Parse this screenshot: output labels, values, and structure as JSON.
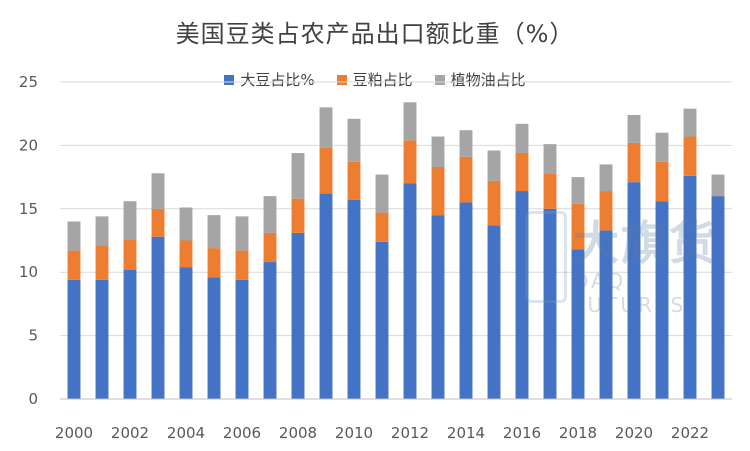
{
  "chart_data": {
    "type": "bar",
    "stacked": true,
    "title": "美国豆类占农产品出口额比重（%）",
    "categories": [
      "2000",
      "2001",
      "2002",
      "2003",
      "2004",
      "2005",
      "2006",
      "2007",
      "2008",
      "2009",
      "2010",
      "2011",
      "2012",
      "2013",
      "2014",
      "2015",
      "2016",
      "2017",
      "2018",
      "2019",
      "2020",
      "2021",
      "2022",
      "2023"
    ],
    "x_tick_labels": [
      "2000",
      "2002",
      "2004",
      "2006",
      "2008",
      "2010",
      "2012",
      "2014",
      "2016",
      "2018",
      "2020",
      "2022"
    ],
    "series": [
      {
        "name": "大豆占比%",
        "color": "#4472C4",
        "values": [
          9.4,
          9.4,
          10.2,
          12.8,
          10.4,
          9.6,
          9.4,
          10.8,
          13.1,
          16.2,
          15.7,
          12.4,
          17.0,
          14.5,
          15.5,
          13.7,
          16.4,
          15.0,
          11.8,
          13.3,
          17.1,
          15.6,
          17.6,
          16.0
        ]
      },
      {
        "name": "豆粕占比",
        "color": "#ED7D31",
        "values": [
          2.3,
          2.7,
          2.4,
          2.2,
          2.1,
          2.3,
          2.3,
          2.3,
          2.7,
          3.6,
          3.0,
          2.3,
          3.4,
          3.8,
          3.6,
          3.5,
          3.0,
          2.8,
          3.6,
          3.1,
          3.1,
          3.1,
          3.1,
          0.0
        ]
      },
      {
        "name": "植物油占比",
        "color": "#A5A5A5",
        "values": [
          2.3,
          2.3,
          3.0,
          2.8,
          2.6,
          2.6,
          2.7,
          2.9,
          3.6,
          3.2,
          3.4,
          3.0,
          3.0,
          2.4,
          2.1,
          2.4,
          2.3,
          2.3,
          2.1,
          2.1,
          2.2,
          2.3,
          2.2,
          1.7
        ]
      }
    ],
    "ylim": [
      0,
      25
    ],
    "yticks": [
      0,
      5,
      10,
      15,
      20,
      25
    ],
    "grid": true,
    "legend_position": "top",
    "xlabel": "",
    "ylabel": ""
  },
  "watermark": {
    "cn": "大旗货",
    "en": "DAQ FUTURES"
  }
}
